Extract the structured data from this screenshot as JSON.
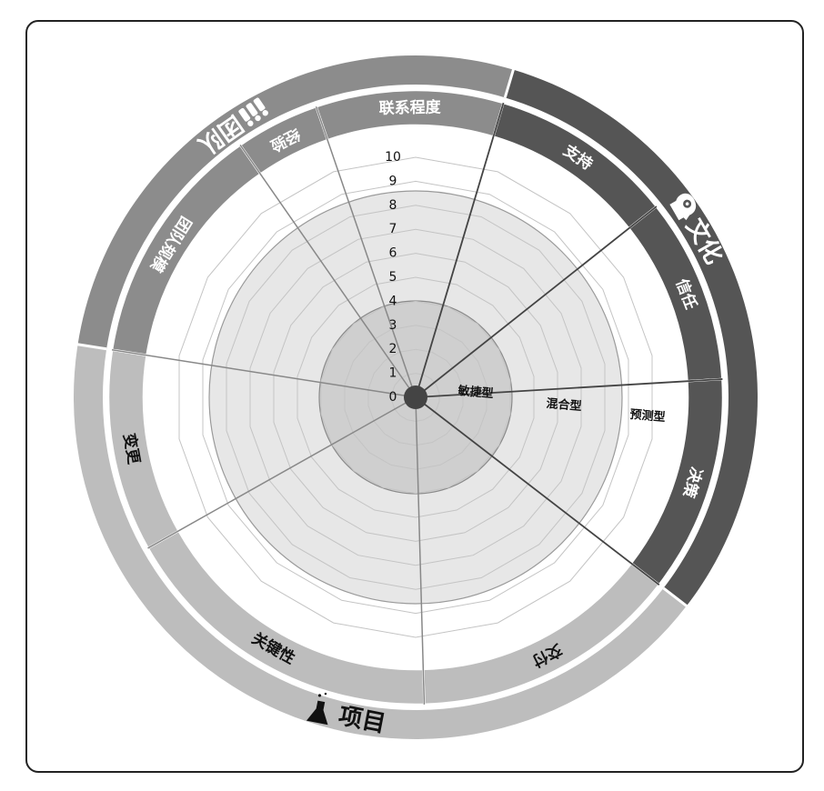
{
  "diagram": {
    "groups": [
      {
        "key": "team",
        "label": "团队",
        "icon": "people-icon",
        "color": "#8c8c8c",
        "text_color": "#ffffff"
      },
      {
        "key": "culture",
        "label": "文化",
        "icon": "head-gears-icon",
        "color": "#555555",
        "text_color": "#ffffff"
      },
      {
        "key": "project",
        "label": "项目",
        "icon": "flask-icon",
        "color": "#bdbdbd",
        "text_color": "#111111"
      }
    ],
    "segments": [
      {
        "label": "联系程度",
        "group": "team"
      },
      {
        "label": "支持",
        "group": "culture"
      },
      {
        "label": "信任",
        "group": "culture"
      },
      {
        "label": "决策",
        "group": "culture"
      },
      {
        "label": "交付",
        "group": "project"
      },
      {
        "label": "关键性",
        "group": "project"
      },
      {
        "label": "变更",
        "group": "project"
      },
      {
        "label": "团队规模",
        "group": "team"
      },
      {
        "label": "经验",
        "group": "team"
      }
    ],
    "scale": [
      "0",
      "1",
      "2",
      "3",
      "4",
      "5",
      "6",
      "7",
      "8",
      "9",
      "10"
    ],
    "zones": [
      "敏捷型",
      "混合型",
      "预测型"
    ]
  }
}
